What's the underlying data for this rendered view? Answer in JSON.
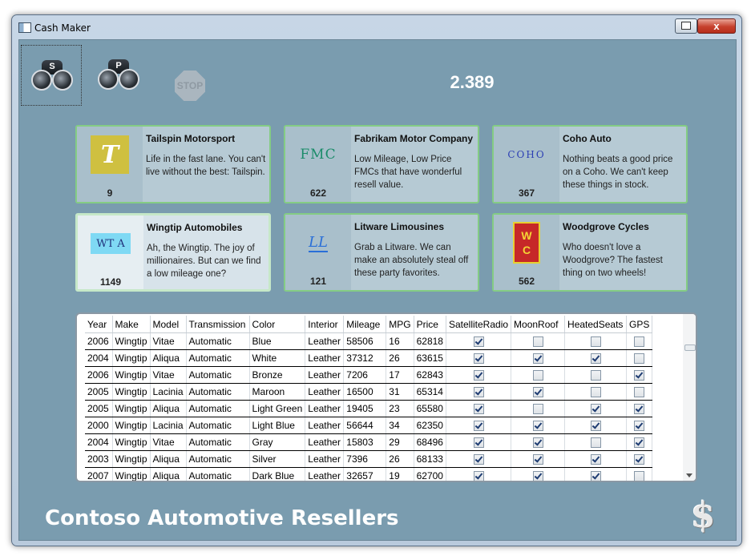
{
  "window": {
    "title": "Cash Maker",
    "close_glyph": "x"
  },
  "toolbar": {
    "search_s_letter": "S",
    "search_p_letter": "P",
    "stop_label": "STOP",
    "counter": "2.389"
  },
  "cards": [
    {
      "name": "Tailspin Motorsport",
      "desc": "Life in the fast lane. You can't live without the best: Tailspin.",
      "count": "9",
      "logo": "T"
    },
    {
      "name": "Fabrikam Motor Company",
      "desc": "Low Mileage, Low Price FMCs that have wonderful resell value.",
      "count": "622",
      "logo": "FMC"
    },
    {
      "name": "Coho Auto",
      "desc": "Nothing beats a good price on a Coho. We can't keep these things in stock.",
      "count": "367",
      "logo": "COHO"
    },
    {
      "name": "Wingtip Automobiles",
      "desc": "Ah, the Wingtip. The joy of millionaires. But can we find a low mileage one?",
      "count": "1149",
      "logo": "WT A"
    },
    {
      "name": "Litware Limousines",
      "desc": "Grab a Litware. We can make an absolutely steal off these party favorites.",
      "count": "121",
      "logo": "LL"
    },
    {
      "name": "Woodgrove Cycles",
      "desc": "Who doesn't love a Woodgrove? The fastest thing on two wheels!",
      "count": "562",
      "logo_top": "W",
      "logo_bottom": "C"
    }
  ],
  "grid": {
    "columns": [
      "Year",
      "Make",
      "Model",
      "Transmission",
      "Color",
      "Interior",
      "Mileage",
      "MPG",
      "Price",
      "SatelliteRadio",
      "MoonRoof",
      "HeatedSeats",
      "GPS"
    ],
    "rows": [
      {
        "year": "2006",
        "make": "Wingtip",
        "model": "Vitae",
        "transmission": "Automatic",
        "color": "Blue",
        "interior": "Leather",
        "mileage": "58506",
        "mpg": "16",
        "price": "62818",
        "sat": true,
        "moon": false,
        "heated": false,
        "gps": false
      },
      {
        "year": "2004",
        "make": "Wingtip",
        "model": "Aliqua",
        "transmission": "Automatic",
        "color": "White",
        "interior": "Leather",
        "mileage": "37312",
        "mpg": "26",
        "price": "63615",
        "sat": true,
        "moon": true,
        "heated": true,
        "gps": false
      },
      {
        "year": "2006",
        "make": "Wingtip",
        "model": "Vitae",
        "transmission": "Automatic",
        "color": "Bronze",
        "interior": "Leather",
        "mileage": "7206",
        "mpg": "17",
        "price": "62843",
        "sat": true,
        "moon": false,
        "heated": false,
        "gps": true
      },
      {
        "year": "2005",
        "make": "Wingtip",
        "model": "Lacinia",
        "transmission": "Automatic",
        "color": "Maroon",
        "interior": "Leather",
        "mileage": "16500",
        "mpg": "31",
        "price": "65314",
        "sat": true,
        "moon": true,
        "heated": false,
        "gps": false
      },
      {
        "year": "2005",
        "make": "Wingtip",
        "model": "Aliqua",
        "transmission": "Automatic",
        "color": "Light Green",
        "interior": "Leather",
        "mileage": "19405",
        "mpg": "23",
        "price": "65580",
        "sat": true,
        "moon": false,
        "heated": true,
        "gps": true
      },
      {
        "year": "2000",
        "make": "Wingtip",
        "model": "Lacinia",
        "transmission": "Automatic",
        "color": "Light Blue",
        "interior": "Leather",
        "mileage": "56644",
        "mpg": "34",
        "price": "62350",
        "sat": true,
        "moon": true,
        "heated": true,
        "gps": true
      },
      {
        "year": "2004",
        "make": "Wingtip",
        "model": "Vitae",
        "transmission": "Automatic",
        "color": "Gray",
        "interior": "Leather",
        "mileage": "15803",
        "mpg": "29",
        "price": "68496",
        "sat": true,
        "moon": true,
        "heated": false,
        "gps": true
      },
      {
        "year": "2003",
        "make": "Wingtip",
        "model": "Aliqua",
        "transmission": "Automatic",
        "color": "Silver",
        "interior": "Leather",
        "mileage": "7396",
        "mpg": "26",
        "price": "68133",
        "sat": true,
        "moon": true,
        "heated": true,
        "gps": true
      },
      {
        "year": "2007",
        "make": "Wingtip",
        "model": "Aliqua",
        "transmission": "Automatic",
        "color": "Dark Blue",
        "interior": "Leather",
        "mileage": "32657",
        "mpg": "19",
        "price": "62700",
        "sat": true,
        "moon": true,
        "heated": true,
        "gps": false
      }
    ]
  },
  "footer": {
    "company": "Contoso Automotive Resellers",
    "logo": "$"
  }
}
